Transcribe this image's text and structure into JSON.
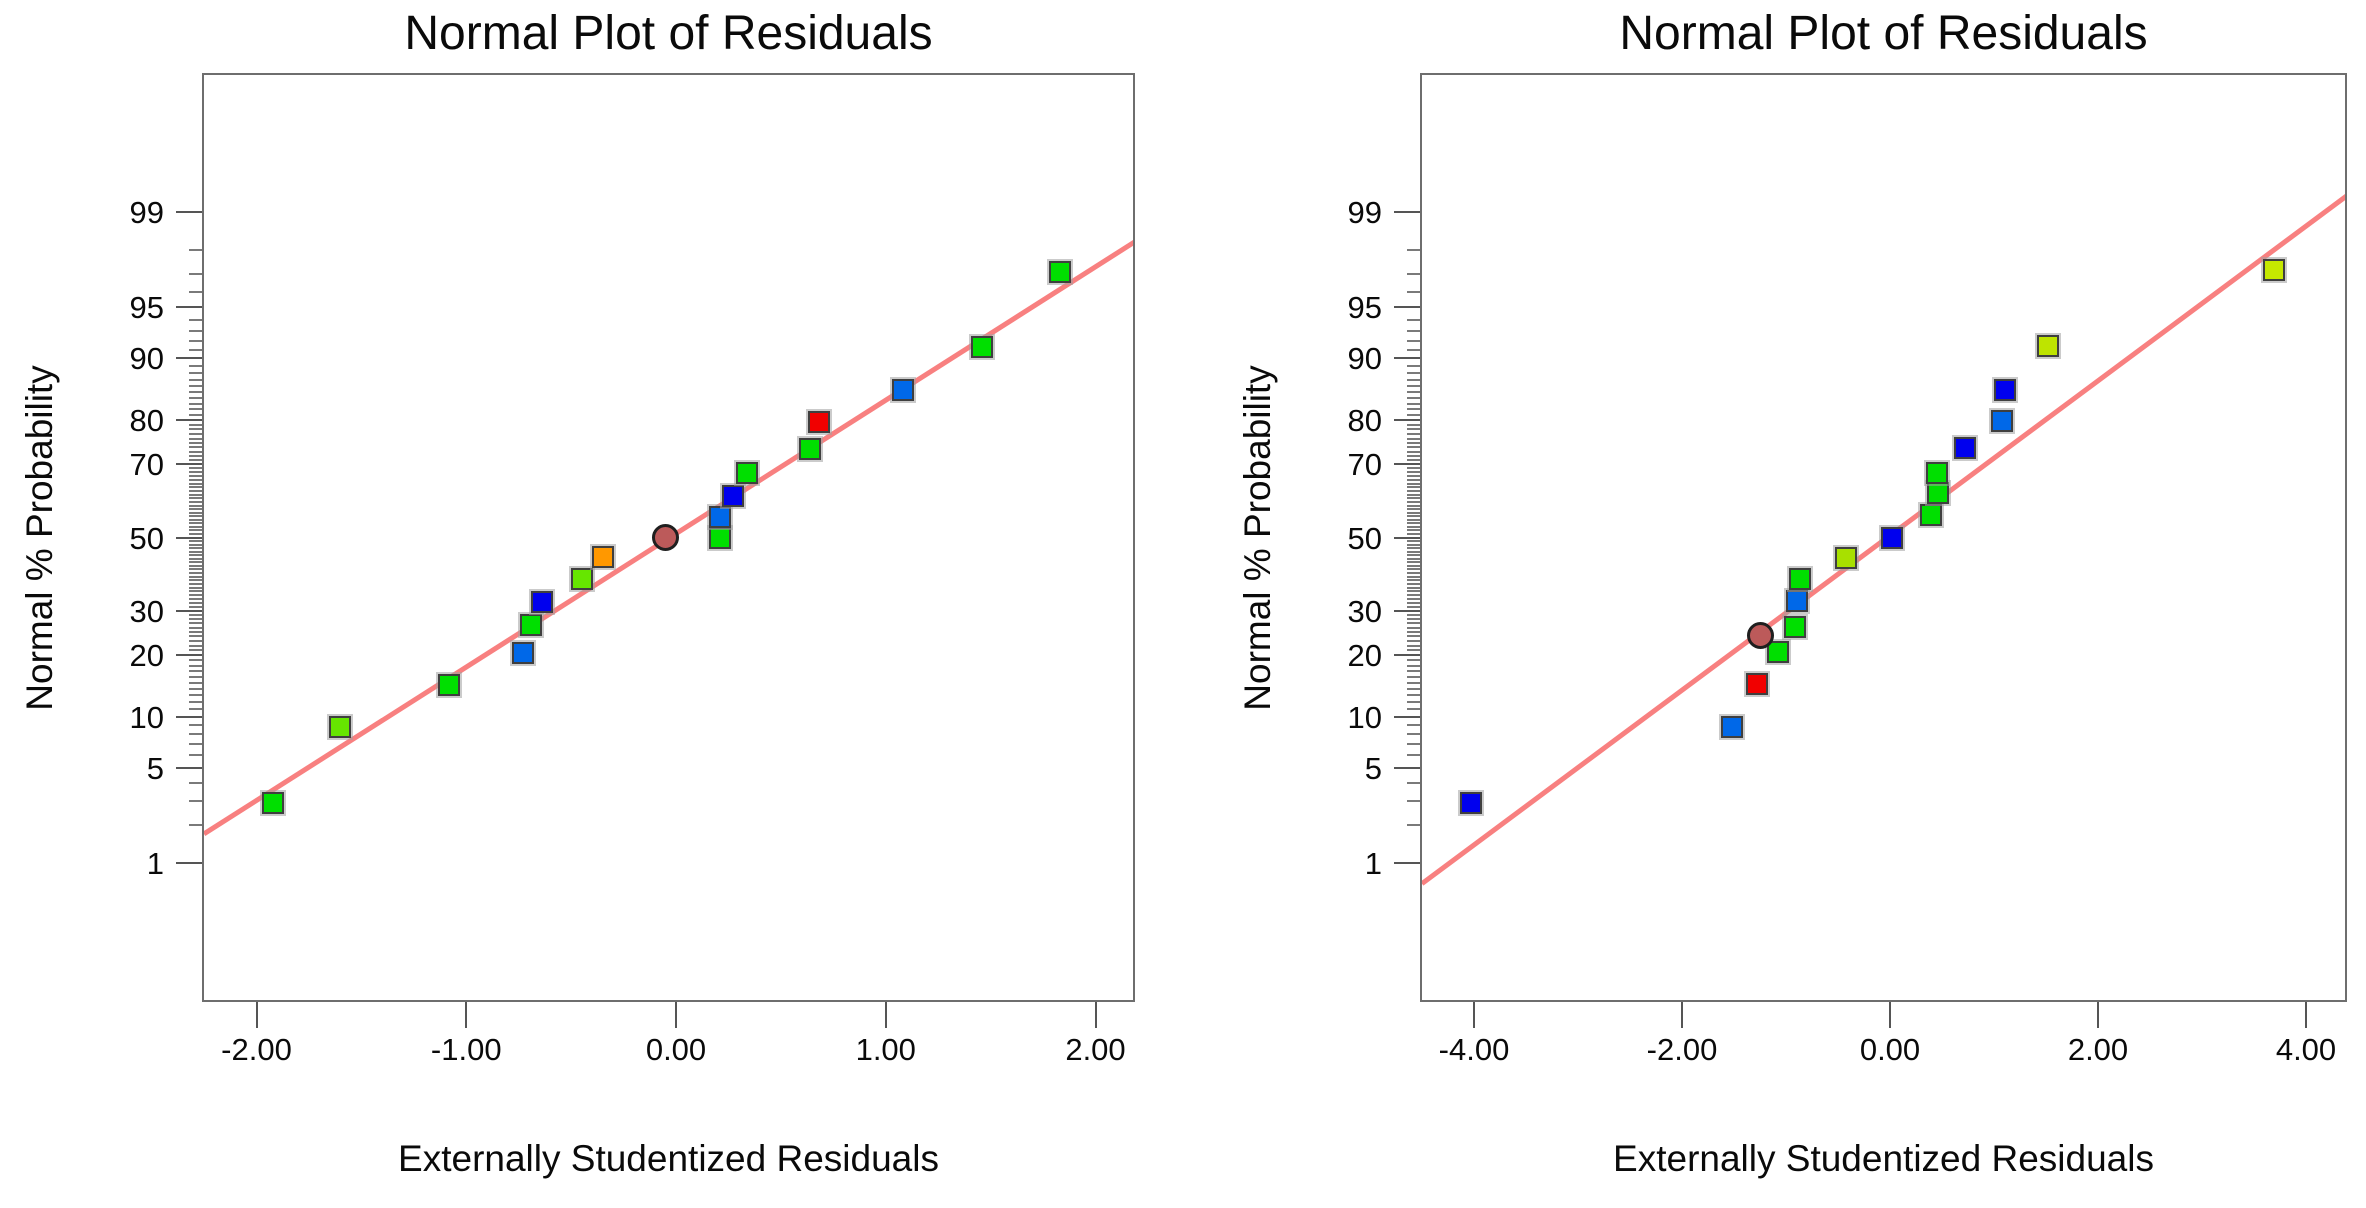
{
  "page": {
    "background": "#FFFFFF",
    "description": "Two side-by-side normal probability plots of residuals"
  },
  "chart_data": [
    {
      "type": "scatter",
      "title": "Normal Plot of Residuals",
      "xlabel": "Externally Studentized Residuals",
      "ylabel": "Normal % Probability",
      "y_scale": "normal-quantile",
      "x_axis": {
        "tick_labels": [
          "-2.00",
          "-1.00",
          "0.00",
          "1.00",
          "2.00"
        ],
        "tick_values": [
          -2,
          -1,
          0,
          1,
          2
        ],
        "range": [
          -2.26,
          2.19
        ]
      },
      "y_axis": {
        "tick_values": [
          1,
          5,
          10,
          20,
          30,
          50,
          70,
          80,
          90,
          95,
          99
        ],
        "minor_tick_step": 1,
        "minor_tick_range": [
          1,
          99
        ]
      },
      "fit_line": {
        "slope_z_per_x": 0.953,
        "intercept_z": 0.051,
        "color": "#F88080",
        "width": 5
      },
      "points": [
        {
          "x": -1.92,
          "p": 2.9,
          "color": "#00DF00",
          "shape": "square"
        },
        {
          "x": -1.6,
          "p": 8.8,
          "color": "#66E600",
          "shape": "square"
        },
        {
          "x": -1.08,
          "p": 14.6,
          "color": "#00DF00",
          "shape": "square"
        },
        {
          "x": -0.73,
          "p": 20.5,
          "color": "#0068E8",
          "shape": "square"
        },
        {
          "x": -0.69,
          "p": 26.5,
          "color": "#00DF00",
          "shape": "square"
        },
        {
          "x": -0.64,
          "p": 32.3,
          "color": "#0000EE",
          "shape": "square"
        },
        {
          "x": -0.45,
          "p": 38.3,
          "color": "#66E600",
          "shape": "square"
        },
        {
          "x": -0.35,
          "p": 44.4,
          "color": "#FF9800",
          "shape": "square"
        },
        {
          "x": -0.05,
          "p": 50.0,
          "color": "#BC5A5A",
          "shape": "circle"
        },
        {
          "x": 0.21,
          "p": 50.0,
          "color": "#00DF00",
          "shape": "square"
        },
        {
          "x": 0.21,
          "p": 55.9,
          "color": "#0068E8",
          "shape": "square"
        },
        {
          "x": 0.27,
          "p": 61.7,
          "color": "#0000EE",
          "shape": "square"
        },
        {
          "x": 0.34,
          "p": 67.8,
          "color": "#00DF00",
          "shape": "square"
        },
        {
          "x": 0.64,
          "p": 73.6,
          "color": "#00DF00",
          "shape": "square"
        },
        {
          "x": 0.68,
          "p": 79.5,
          "color": "#F10000",
          "shape": "square"
        },
        {
          "x": 1.08,
          "p": 85.4,
          "color": "#0068E8",
          "shape": "square"
        },
        {
          "x": 1.46,
          "p": 91.3,
          "color": "#00DF00",
          "shape": "square"
        },
        {
          "x": 1.83,
          "p": 97.1,
          "color": "#00DF00",
          "shape": "square"
        }
      ]
    },
    {
      "type": "scatter",
      "title": "Normal Plot of Residuals",
      "xlabel": "Externally Studentized Residuals",
      "ylabel": "Normal % Probability",
      "y_scale": "normal-quantile",
      "x_axis": {
        "tick_labels": [
          "-4.00",
          "-2.00",
          "0.00",
          "2.00",
          "4.00"
        ],
        "tick_values": [
          -4,
          -2,
          0,
          2,
          4
        ],
        "range": [
          -4.52,
          4.39
        ]
      },
      "y_axis": {
        "tick_values": [
          1,
          5,
          10,
          20,
          30,
          50,
          70,
          80,
          90,
          95,
          99
        ],
        "minor_tick_step": 1,
        "minor_tick_range": [
          1,
          99
        ]
      },
      "fit_line": {
        "slope_z_per_x": 0.5525,
        "intercept_z": 0.039,
        "color": "#F88080",
        "width": 5
      },
      "points": [
        {
          "x": -4.03,
          "p": 2.9,
          "color": "#0000EE",
          "shape": "square"
        },
        {
          "x": -1.52,
          "p": 8.8,
          "color": "#0068E8",
          "shape": "square"
        },
        {
          "x": -1.28,
          "p": 14.7,
          "color": "#F10000",
          "shape": "square"
        },
        {
          "x": -1.08,
          "p": 20.6,
          "color": "#00DF00",
          "shape": "square"
        },
        {
          "x": -1.25,
          "p": 24.3,
          "color": "#BC5A5A",
          "shape": "circle"
        },
        {
          "x": -0.91,
          "p": 26.2,
          "color": "#00DF00",
          "shape": "square"
        },
        {
          "x": -0.89,
          "p": 32.4,
          "color": "#0068E8",
          "shape": "square"
        },
        {
          "x": -0.87,
          "p": 38.3,
          "color": "#00DF00",
          "shape": "square"
        },
        {
          "x": -0.42,
          "p": 44.3,
          "color": "#A8E000",
          "shape": "square"
        },
        {
          "x": 0.02,
          "p": 50.0,
          "color": "#0000EE",
          "shape": "square"
        },
        {
          "x": 0.39,
          "p": 56.4,
          "color": "#00DF00",
          "shape": "square"
        },
        {
          "x": 0.46,
          "p": 62.4,
          "color": "#00DF00",
          "shape": "square"
        },
        {
          "x": 0.45,
          "p": 67.7,
          "color": "#00DF00",
          "shape": "square"
        },
        {
          "x": 0.72,
          "p": 73.9,
          "color": "#0000EE",
          "shape": "square"
        },
        {
          "x": 1.08,
          "p": 79.7,
          "color": "#0068E8",
          "shape": "square"
        },
        {
          "x": 1.11,
          "p": 85.4,
          "color": "#0000EE",
          "shape": "square"
        },
        {
          "x": 1.52,
          "p": 91.4,
          "color": "#BEE400",
          "shape": "square"
        },
        {
          "x": 3.69,
          "p": 97.2,
          "color": "#C6E800",
          "shape": "square"
        }
      ]
    }
  ]
}
